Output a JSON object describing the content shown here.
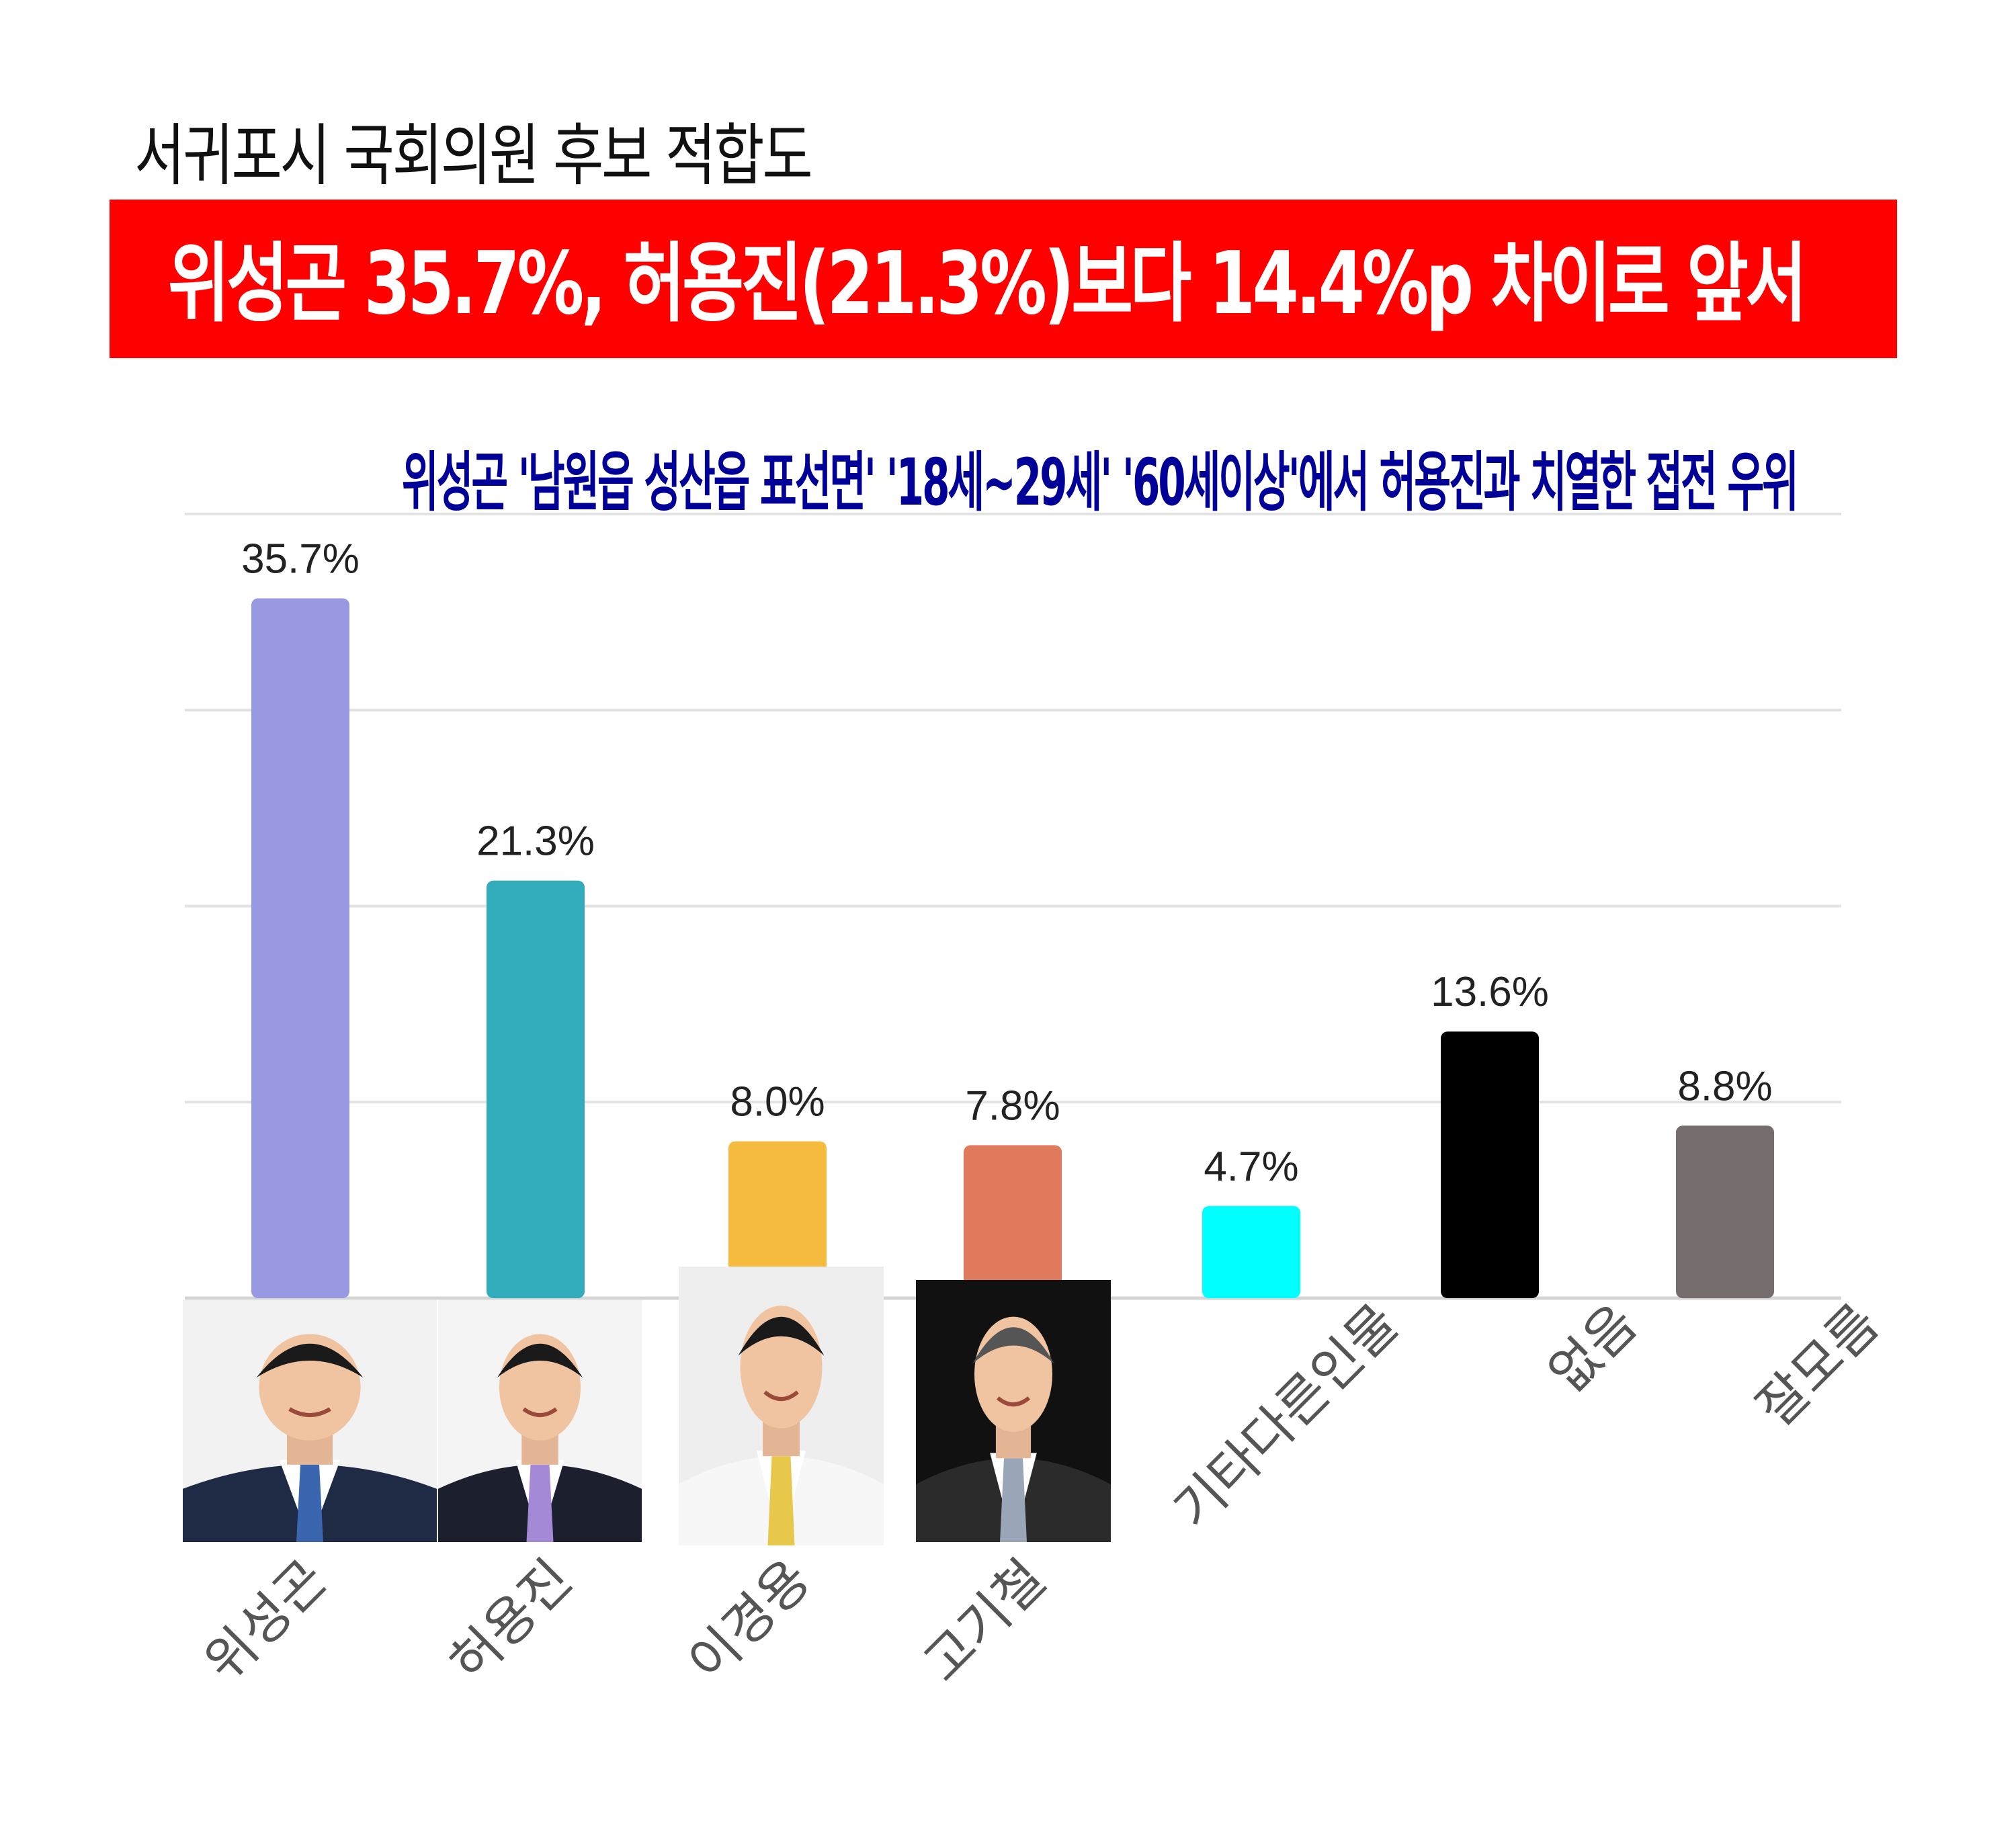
{
  "title": "서귀포시 국회의원 후보 적합도",
  "banner": "위성곤 35.7%, 허용진(21.3%)보다 14.4%p 차이로 앞서",
  "subheadline": "위성곤 '남원읍 성산읍 표선면' '18세~29세' '60세이상'에서 허용진과 치열한 접전 우위",
  "chart_data": {
    "type": "bar",
    "categories": [
      "위성곤",
      "허용진",
      "이경용",
      "고기철",
      "기타다른인물",
      "없음",
      "잘모름"
    ],
    "values": [
      35.7,
      21.3,
      8.0,
      7.8,
      4.7,
      13.6,
      8.8
    ],
    "data_labels": [
      "35.7%",
      "21.3%",
      "8.0%",
      "7.8%",
      "4.7%",
      "13.6%",
      "8.8%"
    ],
    "colors": [
      "#9999e1",
      "#32abba",
      "#f4bb3e",
      "#e07a5c",
      "#00ffff",
      "#000000",
      "#756c6c"
    ],
    "ylim": [
      0,
      40
    ],
    "grid": true,
    "tick_label_rotation": -45,
    "candidate_photos": [
      "위성곤",
      "허용진",
      "이경용",
      "고기철"
    ]
  }
}
